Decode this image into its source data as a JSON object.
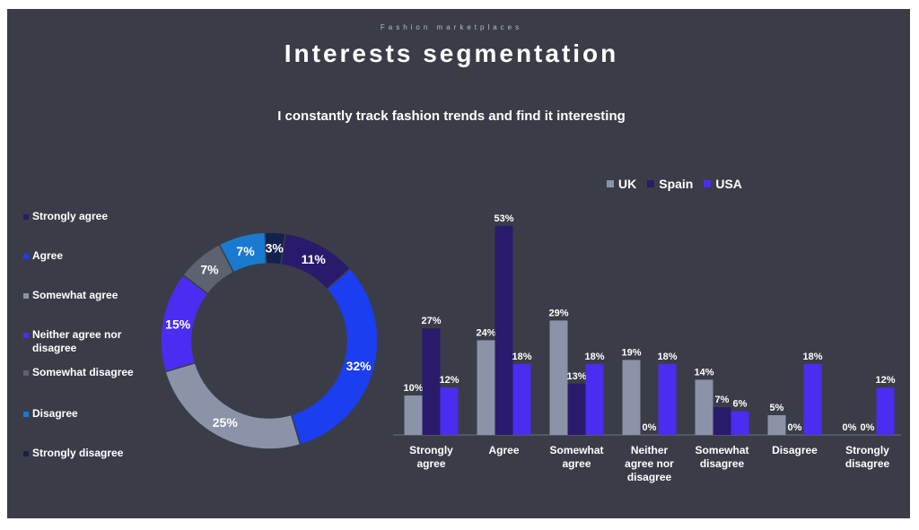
{
  "header": {
    "kicker": "Fashion marketplaces",
    "title": "Interests segmentation",
    "question": "I constantly track fashion trends and find it interesting"
  },
  "chart_data": [
    {
      "type": "pie",
      "variant": "donut",
      "legend_position": "left",
      "categories": [
        "Strongly agree",
        "Agree",
        "Somewhat agree",
        "Neither agree nor disagree",
        "Somewhat disagree",
        "Disagree",
        "Strongly disagree"
      ],
      "slices": [
        {
          "name": "Strongly agree",
          "value": 11,
          "label": "11%",
          "color": "#2a1a6b"
        },
        {
          "name": "Agree",
          "value": 32,
          "label": "32%",
          "color": "#1a3ef0"
        },
        {
          "name": "Somewhat agree",
          "value": 25,
          "label": "25%",
          "color": "#8b93a8"
        },
        {
          "name": "Neither agree nor disagree",
          "value": 15,
          "label": "15%",
          "color": "#4a2df0"
        },
        {
          "name": "Somewhat disagree",
          "value": 7,
          "label": "7%",
          "color": "#5d6270"
        },
        {
          "name": "Disagree",
          "value": 7,
          "label": "7%",
          "color": "#1a7ad0"
        },
        {
          "name": "Strongly disagree",
          "value": 3,
          "label": "3%",
          "color": "#14214f"
        }
      ],
      "legend_colors": [
        "#2a1a6b",
        "#1a3ef0",
        "#8b93a8",
        "#4a2df0",
        "#5d6270",
        "#1a7ad0",
        "#14214f"
      ]
    },
    {
      "type": "bar",
      "legend_position": "top",
      "grid": false,
      "ylim": [
        0,
        55
      ],
      "categories": [
        [
          "Strongly",
          "agree"
        ],
        [
          "Agree"
        ],
        [
          "Somewhat",
          "agree"
        ],
        [
          "Neither",
          "agree nor",
          "disagree"
        ],
        [
          "Somewhat",
          "disagree"
        ],
        [
          "Disagree"
        ],
        [
          "Strongly",
          "disagree"
        ]
      ],
      "series": [
        {
          "name": "UK",
          "color": "#8b93a8",
          "values": [
            10,
            24,
            29,
            19,
            14,
            5,
            0
          ],
          "labels": [
            "10%",
            "24%",
            "29%",
            "19%",
            "14%",
            "5%",
            "0%"
          ]
        },
        {
          "name": "Spain",
          "color": "#2a1a6b",
          "values": [
            27,
            53,
            13,
            0,
            7,
            0,
            0
          ],
          "labels": [
            "27%",
            "53%",
            "13%",
            "0%",
            "7%",
            "0%",
            "0%"
          ]
        },
        {
          "name": "USA",
          "color": "#4a2df0",
          "values": [
            12,
            18,
            18,
            18,
            6,
            18,
            12
          ],
          "labels": [
            "12%",
            "18%",
            "18%",
            "18%",
            "6%",
            "18%",
            "12%"
          ]
        }
      ]
    }
  ]
}
